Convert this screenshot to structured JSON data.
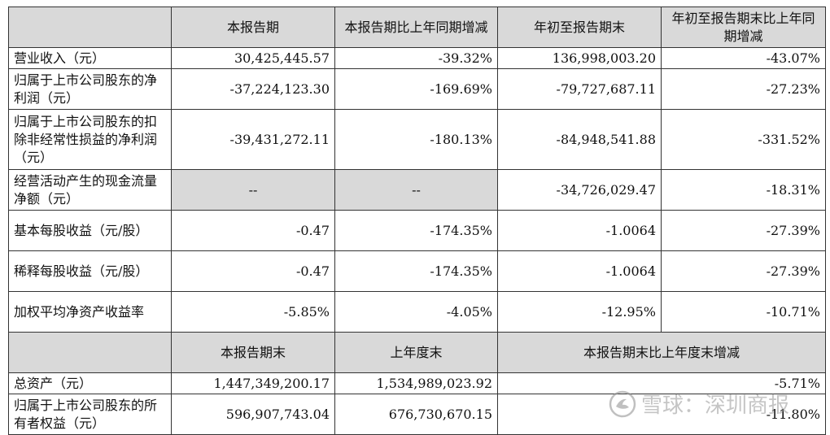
{
  "header1": {
    "col1": "本报告期",
    "col2": "本报告期比上年同期增减",
    "col3": "年初至报告期末",
    "col4": "年初至报告期末比上年同期增减"
  },
  "rows": [
    {
      "label": "营业收入（元）",
      "v1": "30,425,445.57",
      "v2": "-39.32%",
      "v3": "136,998,003.20",
      "v4": "-43.07%"
    },
    {
      "label": "归属于上市公司股东的净利润（元）",
      "v1": "-37,224,123.30",
      "v2": "-169.69%",
      "v3": "-79,727,687.11",
      "v4": "-27.23%"
    },
    {
      "label": "归属于上市公司股东的扣除非经常性损益的净利润（元）",
      "v1": "-39,431,272.11",
      "v2": "-180.13%",
      "v3": "-84,948,541.88",
      "v4": "-331.52%"
    },
    {
      "label": "经营活动产生的现金流量净额（元）",
      "v1": "--",
      "v2": "--",
      "v3": "-34,726,029.47",
      "v4": "-18.31%"
    },
    {
      "label": "基本每股收益（元/股）",
      "v1": "-0.47",
      "v2": "-174.35%",
      "v3": "-1.0064",
      "v4": "-27.39%"
    },
    {
      "label": "稀释每股收益（元/股）",
      "v1": "-0.47",
      "v2": "-174.35%",
      "v3": "-1.0064",
      "v4": "-27.39%"
    },
    {
      "label": "加权平均净资产收益率",
      "v1": "-5.85%",
      "v2": "-4.05%",
      "v3": "-12.95%",
      "v4": "-10.71%"
    }
  ],
  "header2": {
    "col1": "本报告期末",
    "col2": "上年度末",
    "col3": "本报告期末比上年度末增减"
  },
  "rows2": [
    {
      "label": "总资产（元）",
      "v1": "1,447,349,200.17",
      "v2": "1,534,989,023.92",
      "v3": "-5.71%"
    },
    {
      "label": "归属于上市公司股东的所有者权益（元）",
      "v1": "596,907,743.04",
      "v2": "676,730,670.15",
      "v3": "-11.80%"
    }
  ],
  "watermark": {
    "text": "雪球：深圳商报",
    "icon": "snowball-logo-icon"
  }
}
